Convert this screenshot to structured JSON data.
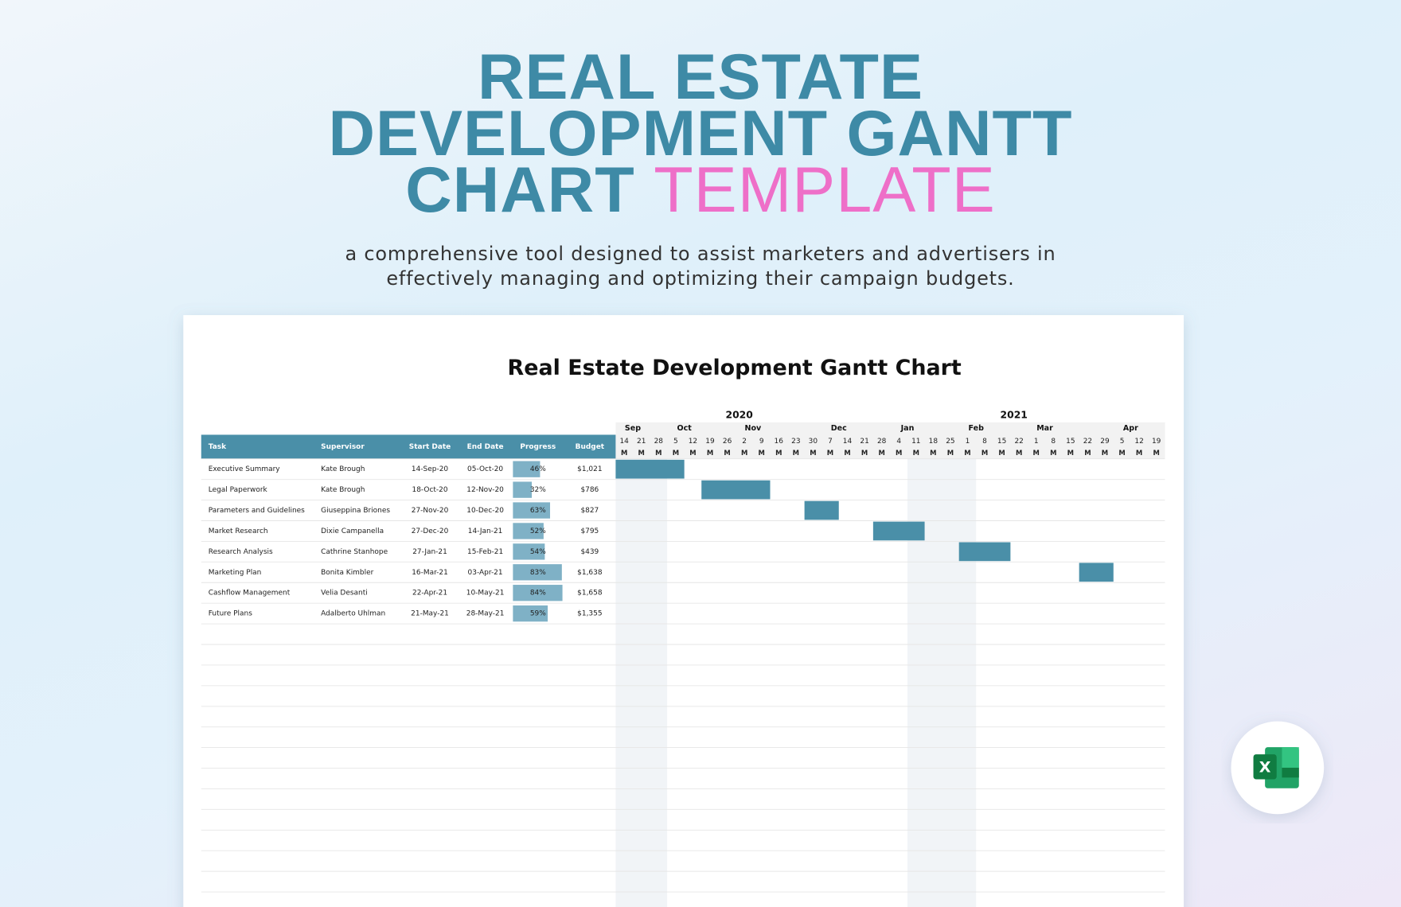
{
  "header": {
    "title": "REAL ESTATE DEVELOPMENT GANTT CHART",
    "title_accent": "TEMPLATE",
    "subtitle": "a comprehensive tool designed to assist marketers and advertisers in effectively managing and optimizing their campaign budgets."
  },
  "sheet": {
    "title": "Real Estate Development Gantt Chart",
    "columns": [
      "Task",
      "Supervisor",
      "Start Date",
      "End Date",
      "Progress",
      "Budget"
    ],
    "rows": [
      {
        "task": "Executive Summary",
        "supervisor": "Kate Brough",
        "start": "14-Sep-20",
        "end": "05-Oct-20",
        "progress": {
          "value": 46,
          "label": "46%"
        },
        "budget": "$1,021"
      },
      {
        "task": "Legal Paperwork",
        "supervisor": "Kate Brough",
        "start": "18-Oct-20",
        "end": "12-Nov-20",
        "progress": {
          "value": 32,
          "label": "32%"
        },
        "budget": "$786"
      },
      {
        "task": "Parameters and Guidelines",
        "supervisor": "Giuseppina Briones",
        "start": "27-Nov-20",
        "end": "10-Dec-20",
        "progress": {
          "value": 63,
          "label": "63%"
        },
        "budget": "$827"
      },
      {
        "task": "Market Research",
        "supervisor": "Dixie Campanella",
        "start": "27-Dec-20",
        "end": "14-Jan-21",
        "progress": {
          "value": 52,
          "label": "52%"
        },
        "budget": "$795"
      },
      {
        "task": "Research Analysis",
        "supervisor": "Cathrine Stanhope",
        "start": "27-Jan-21",
        "end": "15-Feb-21",
        "progress": {
          "value": 54,
          "label": "54%"
        },
        "budget": "$439"
      },
      {
        "task": "Marketing Plan",
        "supervisor": "Bonita Kimbler",
        "start": "16-Mar-21",
        "end": "03-Apr-21",
        "progress": {
          "value": 83,
          "label": "83%"
        },
        "budget": "$1,638"
      },
      {
        "task": "Cashflow Management",
        "supervisor": "Velia Desanti",
        "start": "22-Apr-21",
        "end": "10-May-21",
        "progress": {
          "value": 84,
          "label": "84%"
        },
        "budget": "$1,658"
      },
      {
        "task": "Future Plans",
        "supervisor": "Adalberto Uhlman",
        "start": "21-May-21",
        "end": "28-May-21",
        "progress": {
          "value": 59,
          "label": "59%"
        },
        "budget": "$1,355"
      }
    ],
    "timeline": {
      "weekday": "M",
      "years": [
        {
          "year": "2020",
          "months": [
            {
              "name": "Sep",
              "days": [
                14,
                21,
                28
              ]
            },
            {
              "name": "Oct",
              "days": [
                5,
                12,
                19,
                26
              ]
            },
            {
              "name": "Nov",
              "days": [
                2,
                9,
                16,
                23,
                30
              ]
            },
            {
              "name": "Dec",
              "days": [
                7,
                14,
                21,
                28
              ]
            }
          ]
        },
        {
          "year": "2021",
          "months": [
            {
              "name": "Jan",
              "days": [
                4,
                11,
                18,
                25
              ]
            },
            {
              "name": "Feb",
              "days": [
                1,
                8,
                15,
                22
              ]
            },
            {
              "name": "Mar",
              "days": [
                1,
                8,
                15,
                22,
                29
              ]
            },
            {
              "name": "Apr",
              "days": [
                5,
                12,
                19
              ]
            }
          ]
        }
      ]
    }
  },
  "badge": "X"
}
